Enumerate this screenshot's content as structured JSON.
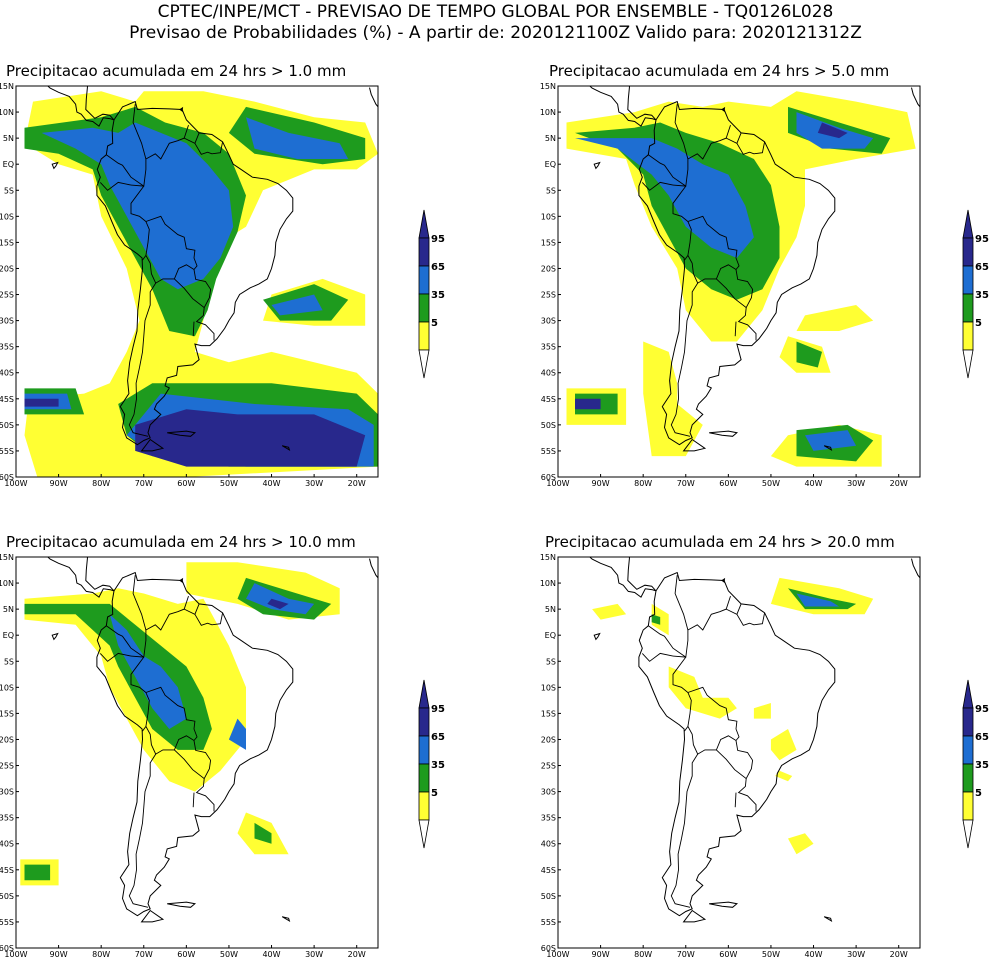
{
  "header": {
    "line1": "CPTEC/INPE/MCT - PREVISAO DE TEMPO GLOBAL POR ENSEMBLE - TQ0126L028",
    "line2": "Previsao de Probabilidades (%) -  A partir de: 2020121100Z  Valido para: 2020121312Z"
  },
  "colors": {
    "p5": "#ffff33",
    "p35": "#1e9b1e",
    "p65": "#1e6ed2",
    "p95": "#28288c",
    "coast": "#000000"
  },
  "axes": {
    "lat_labels": [
      "15N",
      "10N",
      "5N",
      "EQ",
      "5S",
      "10S",
      "15S",
      "20S",
      "25S",
      "30S",
      "35S",
      "40S",
      "45S",
      "50S",
      "55S",
      "60S"
    ],
    "lon_labels": [
      "100W",
      "90W",
      "80W",
      "70W",
      "60W",
      "50W",
      "40W",
      "30W",
      "20W"
    ],
    "lon_range": [
      -100,
      -15
    ],
    "lat_range": [
      -60,
      15
    ]
  },
  "colorbar": {
    "labels": [
      "95",
      "65",
      "35",
      "5"
    ]
  },
  "panels": [
    {
      "id": "p1",
      "title": "Precipitacao acumulada em 24 hrs > 1.0 mm"
    },
    {
      "id": "p2",
      "title": "Precipitacao acumulada em 24 hrs > 5.0 mm"
    },
    {
      "id": "p3",
      "title": "Precipitacao acumulada em 24 hrs > 10.0 mm"
    },
    {
      "id": "p4",
      "title": "Precipitacao acumulada em 24 hrs > 20.0 mm"
    }
  ]
}
